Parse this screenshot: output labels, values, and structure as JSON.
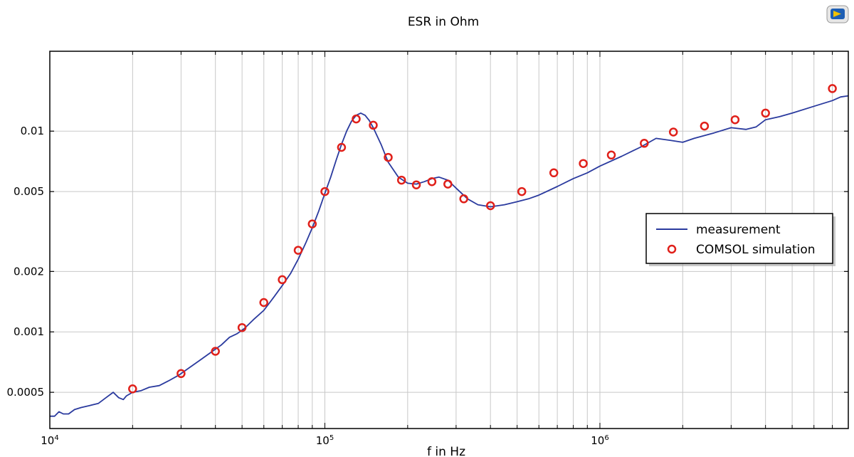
{
  "chart_data": {
    "type": "line",
    "title": "ESR in Ohm",
    "xlabel": "f in Hz",
    "ylabel": "",
    "xscale": "log",
    "yscale": "log",
    "xlim": [
      10000,
      8000000
    ],
    "ylim": [
      0.00033,
      0.025
    ],
    "x_ticks": [
      {
        "value": 10000,
        "base": "10",
        "exp": "4"
      },
      {
        "value": 100000,
        "base": "10",
        "exp": "5"
      },
      {
        "value": 1000000,
        "base": "10",
        "exp": "6"
      }
    ],
    "y_ticks": [
      {
        "value": 0.0005,
        "label": "0.0005"
      },
      {
        "value": 0.001,
        "label": "0.001"
      },
      {
        "value": 0.002,
        "label": "0.002"
      },
      {
        "value": 0.005,
        "label": "0.005"
      },
      {
        "value": 0.01,
        "label": "0.01"
      }
    ],
    "grid": true,
    "legend_position": "right",
    "colors": {
      "measurement": "#2a3a9e",
      "simulation": "#e0201a",
      "grid": "#c8c8c8"
    },
    "series": [
      {
        "name": "measurement",
        "style": "line",
        "points": [
          [
            10000,
            0.00038
          ],
          [
            10400,
            0.00038
          ],
          [
            10800,
            0.0004
          ],
          [
            11200,
            0.00039
          ],
          [
            11700,
            0.00039
          ],
          [
            12300,
            0.00041
          ],
          [
            13000,
            0.00042
          ],
          [
            14000,
            0.00043
          ],
          [
            15000,
            0.00044
          ],
          [
            16000,
            0.00047
          ],
          [
            17000,
            0.0005
          ],
          [
            17800,
            0.00047
          ],
          [
            18500,
            0.00046
          ],
          [
            19000,
            0.00048
          ],
          [
            20000,
            0.0005
          ],
          [
            21500,
            0.00051
          ],
          [
            23000,
            0.00053
          ],
          [
            25000,
            0.00054
          ],
          [
            27000,
            0.00057
          ],
          [
            29500,
            0.00061
          ],
          [
            32000,
            0.00066
          ],
          [
            35000,
            0.00072
          ],
          [
            38000,
            0.00078
          ],
          [
            42000,
            0.00086
          ],
          [
            45000,
            0.00094
          ],
          [
            48000,
            0.00098
          ],
          [
            51000,
            0.00104
          ],
          [
            55000,
            0.00115
          ],
          [
            60000,
            0.00128
          ],
          [
            65000,
            0.00148
          ],
          [
            70000,
            0.0017
          ],
          [
            75000,
            0.00195
          ],
          [
            80000,
            0.0023
          ],
          [
            85000,
            0.00275
          ],
          [
            90000,
            0.0033
          ],
          [
            95000,
            0.004
          ],
          [
            100000,
            0.0049
          ],
          [
            105000,
            0.0059
          ],
          [
            110000,
            0.0072
          ],
          [
            115000,
            0.0086
          ],
          [
            120000,
            0.01
          ],
          [
            125000,
            0.0112
          ],
          [
            130000,
            0.012
          ],
          [
            135000,
            0.0123
          ],
          [
            140000,
            0.012
          ],
          [
            145000,
            0.0113
          ],
          [
            150000,
            0.0104
          ],
          [
            160000,
            0.0086
          ],
          [
            170000,
            0.007
          ],
          [
            185000,
            0.0059
          ],
          [
            200000,
            0.0055
          ],
          [
            215000,
            0.00545
          ],
          [
            230000,
            0.0056
          ],
          [
            245000,
            0.0058
          ],
          [
            260000,
            0.0059
          ],
          [
            280000,
            0.0057
          ],
          [
            300000,
            0.0052
          ],
          [
            330000,
            0.0046
          ],
          [
            360000,
            0.0043
          ],
          [
            400000,
            0.0042
          ],
          [
            450000,
            0.0043
          ],
          [
            500000,
            0.00445
          ],
          [
            550000,
            0.0046
          ],
          [
            600000,
            0.0048
          ],
          [
            700000,
            0.0053
          ],
          [
            800000,
            0.0058
          ],
          [
            900000,
            0.0062
          ],
          [
            1000000,
            0.0067
          ],
          [
            1200000,
            0.0075
          ],
          [
            1400000,
            0.0083
          ],
          [
            1600000,
            0.0092
          ],
          [
            1800000,
            0.009
          ],
          [
            2000000,
            0.0088
          ],
          [
            2200000,
            0.0092
          ],
          [
            2600000,
            0.0098
          ],
          [
            3000000,
            0.0104
          ],
          [
            3400000,
            0.0102
          ],
          [
            3700000,
            0.0105
          ],
          [
            4000000,
            0.0114
          ],
          [
            4500000,
            0.0118
          ],
          [
            5000000,
            0.0123
          ],
          [
            6000000,
            0.0133
          ],
          [
            7000000,
            0.0142
          ],
          [
            7500000,
            0.0148
          ],
          [
            8000000,
            0.015
          ]
        ]
      },
      {
        "name": "COMSOL simulation",
        "style": "markers",
        "points": [
          [
            20000,
            0.00052
          ],
          [
            30000,
            0.00062
          ],
          [
            40000,
            0.0008
          ],
          [
            50000,
            0.00105
          ],
          [
            60000,
            0.0014
          ],
          [
            70000,
            0.00182
          ],
          [
            80000,
            0.00255
          ],
          [
            90000,
            0.00345
          ],
          [
            100000,
            0.005
          ],
          [
            115000,
            0.0083
          ],
          [
            130000,
            0.0115
          ],
          [
            150000,
            0.0107
          ],
          [
            170000,
            0.0074
          ],
          [
            190000,
            0.0057
          ],
          [
            215000,
            0.0054
          ],
          [
            245000,
            0.0056
          ],
          [
            280000,
            0.00545
          ],
          [
            320000,
            0.0046
          ],
          [
            400000,
            0.00425
          ],
          [
            520000,
            0.005
          ],
          [
            680000,
            0.0062
          ],
          [
            870000,
            0.0069
          ],
          [
            1100000,
            0.0076
          ],
          [
            1450000,
            0.0087
          ],
          [
            1850000,
            0.0099
          ],
          [
            2400000,
            0.0106
          ],
          [
            3100000,
            0.0114
          ],
          [
            4000000,
            0.0123
          ],
          [
            7000000,
            0.0163
          ]
        ]
      }
    ]
  }
}
